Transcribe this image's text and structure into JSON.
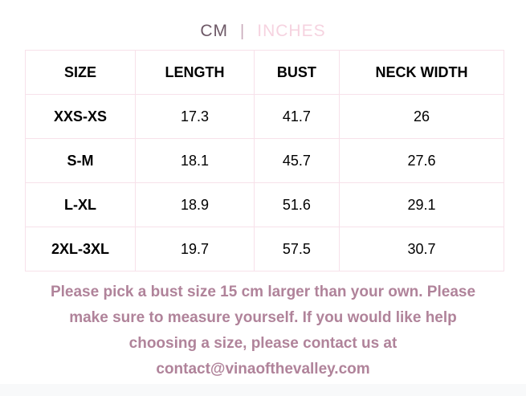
{
  "unit_toggle": {
    "cm_label": "CM",
    "divider": "|",
    "inches_label": "INCHES",
    "active_unit": "CM"
  },
  "size_chart": {
    "columns": [
      "SIZE",
      "LENGTH",
      "BUST",
      "NECK WIDTH"
    ],
    "rows": [
      {
        "size": "XXS-XS",
        "length": "17.3",
        "bust": "41.7",
        "neck_width": "26"
      },
      {
        "size": "S-M",
        "length": "18.1",
        "bust": "45.7",
        "neck_width": "27.6"
      },
      {
        "size": "L-XL",
        "length": "18.9",
        "bust": "51.6",
        "neck_width": "29.1"
      },
      {
        "size": "2XL-3XL",
        "length": "19.7",
        "bust": "57.5",
        "neck_width": "30.7"
      }
    ]
  },
  "note": {
    "lines": [
      "Please pick a bust size 15 cm larger than your own. Please",
      "make sure to measure yourself. If you would like help",
      "choosing a size, please contact us at",
      "contact@vinaofthevalley.com"
    ]
  },
  "colors": {
    "active_unit_text": "#6d5866",
    "inactive_unit_text": "#f6d3e0",
    "table_border": "#f7e1ea",
    "cell_text": "#000000",
    "note_text": "#b0839a",
    "bottom_strip": "#f8f9fa"
  }
}
